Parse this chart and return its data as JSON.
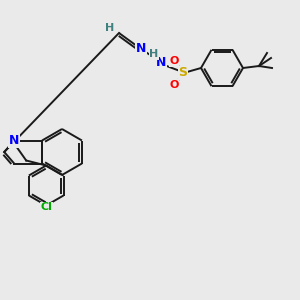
{
  "background_color": "#eaeaea",
  "atoms": {
    "S": {
      "color": "#ccaa00",
      "fontsize": 9
    },
    "O": {
      "color": "#ff0000",
      "fontsize": 8
    },
    "N": {
      "color": "#0000ff",
      "fontsize": 9
    },
    "H": {
      "color": "#408080",
      "fontsize": 8
    },
    "Cl": {
      "color": "#00aa00",
      "fontsize": 8
    }
  },
  "bond_color": "#1a1a1a",
  "bond_lw": 1.4
}
